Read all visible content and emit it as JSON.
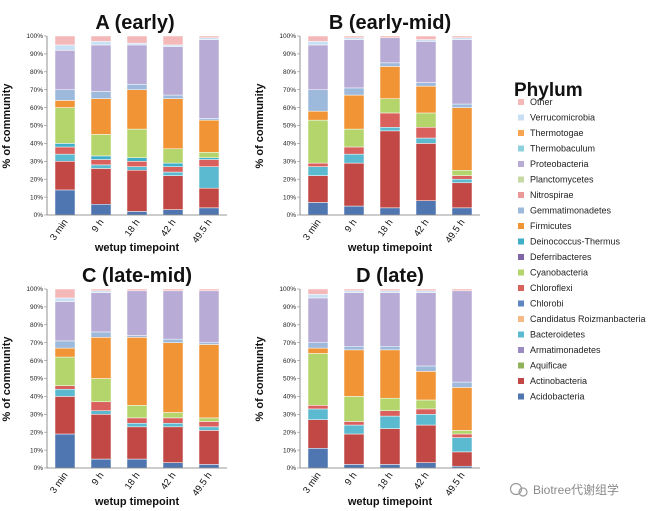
{
  "legend": {
    "title": "Phylum",
    "items": [
      {
        "name": "Other",
        "color": "#f4b8b8"
      },
      {
        "name": "Verrucomicrobia",
        "color": "#c9dff3"
      },
      {
        "name": "Thermotogae",
        "color": "#f6a44f"
      },
      {
        "name": "Thermobaculum",
        "color": "#8fd0dd"
      },
      {
        "name": "Proteobacteria",
        "color": "#b8acd6"
      },
      {
        "name": "Planctomycetes",
        "color": "#c7d9a3"
      },
      {
        "name": "Nitrospirae",
        "color": "#e99a98"
      },
      {
        "name": "Gemmatimonadetes",
        "color": "#9db9dc"
      },
      {
        "name": "Firmicutes",
        "color": "#f09435"
      },
      {
        "name": "Deinococcus-Thermus",
        "color": "#3faec8"
      },
      {
        "name": "Deferribacteres",
        "color": "#7e65a6"
      },
      {
        "name": "Cyanobacteria",
        "color": "#b4d56c"
      },
      {
        "name": "Chloroflexi",
        "color": "#d9605d"
      },
      {
        "name": "Chlorobi",
        "color": "#5e86c1"
      },
      {
        "name": "Candidatus Roizmanbacteria",
        "color": "#f5b887"
      },
      {
        "name": "Bacteroidetes",
        "color": "#5cbad0"
      },
      {
        "name": "Armatimonadetes",
        "color": "#9c8ac4"
      },
      {
        "name": "Aquificae",
        "color": "#8fb35a"
      },
      {
        "name": "Actinobacteria",
        "color": "#c24845"
      },
      {
        "name": "Acidobacteria",
        "color": "#4f76b0"
      }
    ]
  },
  "watermark": "Biotree代谢组学",
  "chart_data": [
    {
      "type": "bar",
      "stacked": true,
      "title": "A (early)",
      "xlabel": "wetup timepoint",
      "ylabel": "% of community",
      "ylim": [
        0,
        100
      ],
      "yticks": [
        "0%",
        "10%",
        "20%",
        "30%",
        "40%",
        "50%",
        "60%",
        "70%",
        "80%",
        "90%",
        "100%"
      ],
      "categories": [
        "3 min",
        "9 h",
        "18 h",
        "42 h",
        "49.5 h"
      ],
      "series": [
        {
          "name": "Acidobacteria",
          "values": [
            14,
            6,
            2,
            3,
            4
          ]
        },
        {
          "name": "Actinobacteria",
          "values": [
            16,
            20,
            23,
            19,
            11
          ]
        },
        {
          "name": "Bacteroidetes",
          "values": [
            4,
            2,
            2,
            2,
            12
          ]
        },
        {
          "name": "Chloroflexi",
          "values": [
            4,
            3,
            3,
            3,
            4
          ]
        },
        {
          "name": "Deinococcus-Thermus",
          "values": [
            2,
            2,
            2,
            2,
            1
          ]
        },
        {
          "name": "Cyanobacteria",
          "values": [
            20,
            12,
            16,
            8,
            3
          ]
        },
        {
          "name": "Firmicutes",
          "values": [
            4,
            20,
            22,
            28,
            18
          ]
        },
        {
          "name": "Gemmatimonadetes",
          "values": [
            6,
            4,
            3,
            2,
            1
          ]
        },
        {
          "name": "Proteobacteria",
          "values": [
            22,
            26,
            22,
            27,
            44
          ]
        },
        {
          "name": "Verrucomicrobia",
          "values": [
            3,
            2,
            1,
            1,
            1
          ]
        },
        {
          "name": "Other",
          "values": [
            5,
            3,
            4,
            5,
            1
          ]
        }
      ]
    },
    {
      "type": "bar",
      "stacked": true,
      "title": "B (early-mid)",
      "xlabel": "wetup timepoint",
      "ylabel": "% of community",
      "ylim": [
        0,
        100
      ],
      "yticks": [
        "0%",
        "10%",
        "20%",
        "30%",
        "40%",
        "50%",
        "60%",
        "70%",
        "80%",
        "90%",
        "100%"
      ],
      "categories": [
        "3 min",
        "9 h",
        "18 h",
        "42 h",
        "49.5 h"
      ],
      "series": [
        {
          "name": "Acidobacteria",
          "values": [
            7,
            5,
            4,
            8,
            4
          ]
        },
        {
          "name": "Actinobacteria",
          "values": [
            15,
            24,
            43,
            32,
            14
          ]
        },
        {
          "name": "Bacteroidetes",
          "values": [
            5,
            5,
            2,
            3,
            2
          ]
        },
        {
          "name": "Chloroflexi",
          "values": [
            2,
            4,
            8,
            6,
            2
          ]
        },
        {
          "name": "Cyanobacteria",
          "values": [
            24,
            10,
            8,
            8,
            3
          ]
        },
        {
          "name": "Firmicutes",
          "values": [
            5,
            19,
            18,
            15,
            35
          ]
        },
        {
          "name": "Gemmatimonadetes",
          "values": [
            12,
            4,
            2,
            2,
            2
          ]
        },
        {
          "name": "Proteobacteria",
          "values": [
            25,
            27,
            14,
            23,
            36
          ]
        },
        {
          "name": "Verrucomicrobia",
          "values": [
            2,
            1,
            0,
            1,
            1
          ]
        },
        {
          "name": "Other",
          "values": [
            3,
            1,
            1,
            2,
            1
          ]
        }
      ]
    },
    {
      "type": "bar",
      "stacked": true,
      "title": "C (late-mid)",
      "xlabel": "wetup timepoint",
      "ylabel": "% of community",
      "ylim": [
        0,
        100
      ],
      "yticks": [
        "0%",
        "10%",
        "20%",
        "30%",
        "40%",
        "50%",
        "60%",
        "70%",
        "80%",
        "90%",
        "100%"
      ],
      "categories": [
        "3 min",
        "9 h",
        "18 h",
        "42 h",
        "49.5 h"
      ],
      "series": [
        {
          "name": "Acidobacteria",
          "values": [
            19,
            5,
            5,
            3,
            2
          ]
        },
        {
          "name": "Actinobacteria",
          "values": [
            21,
            25,
            18,
            20,
            19
          ]
        },
        {
          "name": "Bacteroidetes",
          "values": [
            4,
            2,
            2,
            2,
            2
          ]
        },
        {
          "name": "Chloroflexi",
          "values": [
            2,
            5,
            3,
            3,
            3
          ]
        },
        {
          "name": "Cyanobacteria",
          "values": [
            16,
            13,
            7,
            3,
            2
          ]
        },
        {
          "name": "Firmicutes",
          "values": [
            5,
            23,
            38,
            39,
            41
          ]
        },
        {
          "name": "Gemmatimonadetes",
          "values": [
            4,
            3,
            1,
            2,
            1
          ]
        },
        {
          "name": "Proteobacteria",
          "values": [
            22,
            22,
            25,
            27,
            29
          ]
        },
        {
          "name": "Verrucomicrobia",
          "values": [
            2,
            1,
            0,
            0,
            0
          ]
        },
        {
          "name": "Other",
          "values": [
            5,
            1,
            1,
            1,
            1
          ]
        }
      ]
    },
    {
      "type": "bar",
      "stacked": true,
      "title": "D (late)",
      "xlabel": "wetup timepoint",
      "ylabel": "% of community",
      "ylim": [
        0,
        100
      ],
      "yticks": [
        "0%",
        "10%",
        "20%",
        "30%",
        "40%",
        "50%",
        "60%",
        "70%",
        "80%",
        "90%",
        "100%"
      ],
      "categories": [
        "3 min",
        "9 h",
        "18 h",
        "42 h",
        "49.5 h"
      ],
      "series": [
        {
          "name": "Acidobacteria",
          "values": [
            11,
            2,
            2,
            3,
            1
          ]
        },
        {
          "name": "Actinobacteria",
          "values": [
            16,
            17,
            20,
            21,
            8
          ]
        },
        {
          "name": "Bacteroidetes",
          "values": [
            6,
            5,
            7,
            6,
            8
          ]
        },
        {
          "name": "Chloroflexi",
          "values": [
            2,
            2,
            3,
            3,
            2
          ]
        },
        {
          "name": "Cyanobacteria",
          "values": [
            29,
            14,
            7,
            5,
            2
          ]
        },
        {
          "name": "Firmicutes",
          "values": [
            3,
            26,
            27,
            16,
            24
          ]
        },
        {
          "name": "Gemmatimonadetes",
          "values": [
            3,
            2,
            2,
            3,
            3
          ]
        },
        {
          "name": "Proteobacteria",
          "values": [
            25,
            30,
            30,
            41,
            51
          ]
        },
        {
          "name": "Verrucomicrobia",
          "values": [
            2,
            1,
            1,
            1,
            0
          ]
        },
        {
          "name": "Other",
          "values": [
            3,
            1,
            1,
            1,
            1
          ]
        }
      ]
    }
  ]
}
